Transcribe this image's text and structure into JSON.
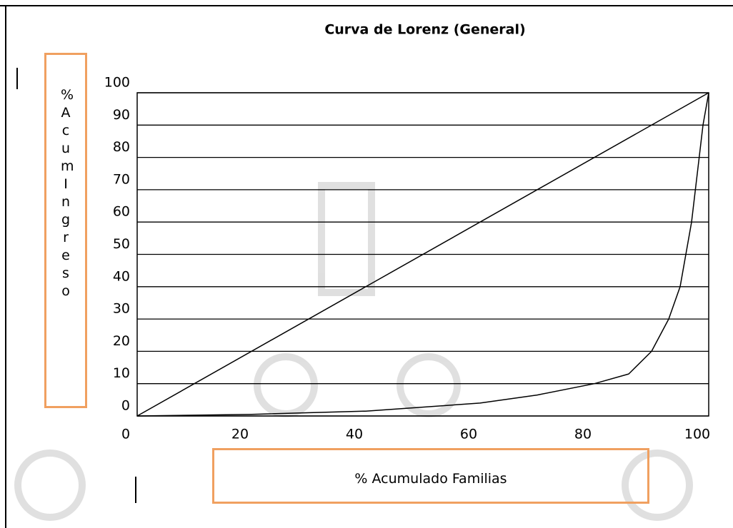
{
  "chart_data": {
    "type": "line",
    "title": "Curva de Lorenz (General)",
    "x_label": "% Acumulado Familias",
    "y_label": "%AcumIngreso",
    "xlim": [
      0,
      100
    ],
    "xticks": [
      0,
      20,
      40,
      60,
      80,
      100
    ],
    "ylim": [
      0,
      100
    ],
    "yticks": [
      0,
      10,
      20,
      30,
      40,
      50,
      60,
      70,
      80,
      90,
      100
    ],
    "grid": true,
    "series": [
      {
        "color": "#000000",
        "x": [
          0,
          100
        ],
        "values": [
          0,
          100
        ]
      },
      {
        "color": "#000000",
        "x": [
          0,
          20,
          40,
          60,
          70,
          80,
          86,
          90,
          93,
          95,
          97,
          98,
          99,
          100
        ],
        "values": [
          0,
          0.5,
          1.5,
          4,
          6.5,
          10,
          13,
          20,
          30,
          40,
          60,
          75,
          90,
          100
        ]
      }
    ]
  }
}
